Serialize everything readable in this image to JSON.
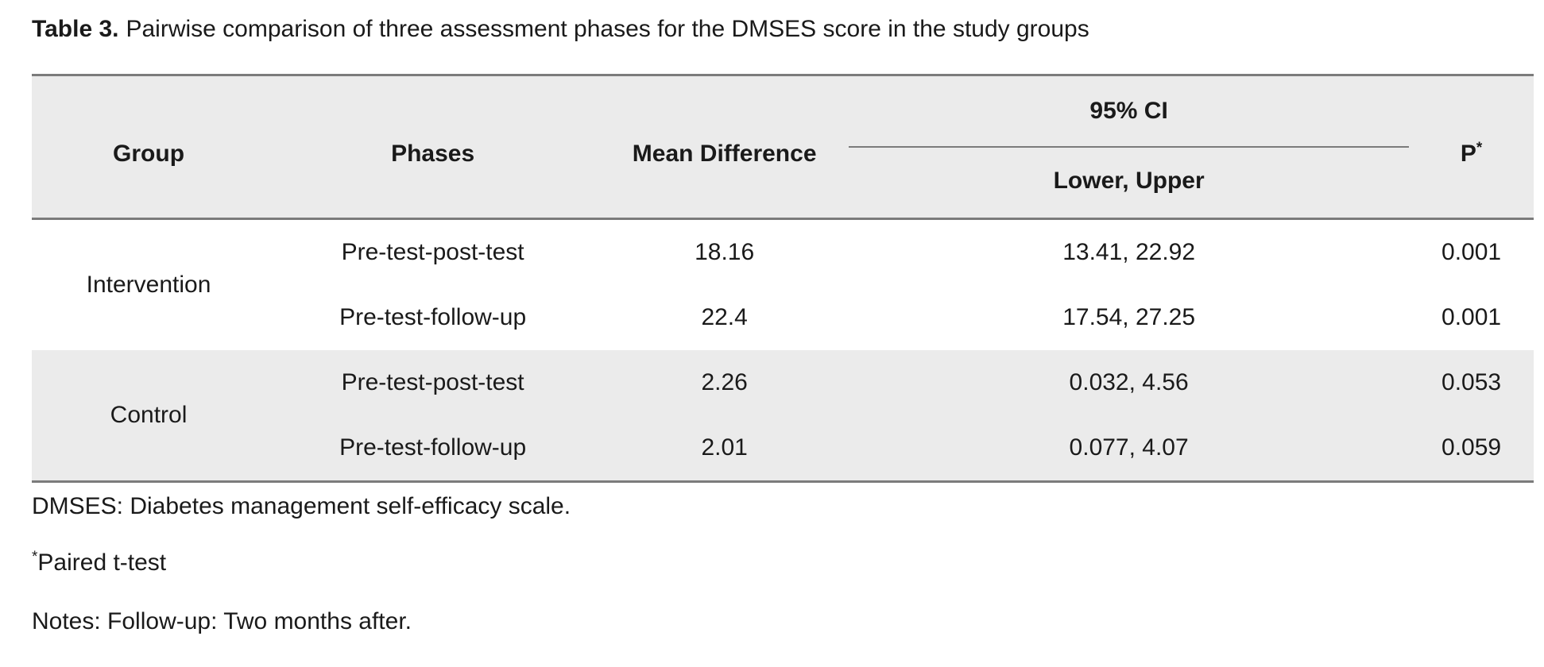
{
  "caption": {
    "label": "Table 3.",
    "text": "Pairwise comparison of three assessment phases for the DMSES score in the study groups"
  },
  "table": {
    "headers": {
      "group": "Group",
      "phases": "Phases",
      "mean_difference": "Mean Difference",
      "ci": "95% CI",
      "ci_sub": "Lower, Upper",
      "p": "P",
      "p_sup": "*"
    },
    "groups": [
      {
        "name": "Intervention",
        "rows": [
          {
            "phase": "Pre-test-post-test",
            "mean": "18.16",
            "ci": "13.41, 22.92",
            "p": "0.001"
          },
          {
            "phase": "Pre-test-follow-up",
            "mean": "22.4",
            "ci": "17.54, 27.25",
            "p": "0.001"
          }
        ]
      },
      {
        "name": "Control",
        "rows": [
          {
            "phase": "Pre-test-post-test",
            "mean": "2.26",
            "ci": "0.032, 4.56",
            "p": "0.053"
          },
          {
            "phase": "Pre-test-follow-up",
            "mean": "2.01",
            "ci": "0.077, 4.07",
            "p": "0.059"
          }
        ]
      }
    ]
  },
  "footnotes": {
    "dmses": "DMSES: Diabetes management self-efficacy scale.",
    "paired_sup": "*",
    "paired": "Paired t-test",
    "notes": "Notes: Follow-up: Two months after."
  },
  "colors": {
    "header_bg": "#ebebeb",
    "stripe_bg": "#ebebeb",
    "border": "#7b7b7b",
    "text": "#1a1a1a"
  }
}
